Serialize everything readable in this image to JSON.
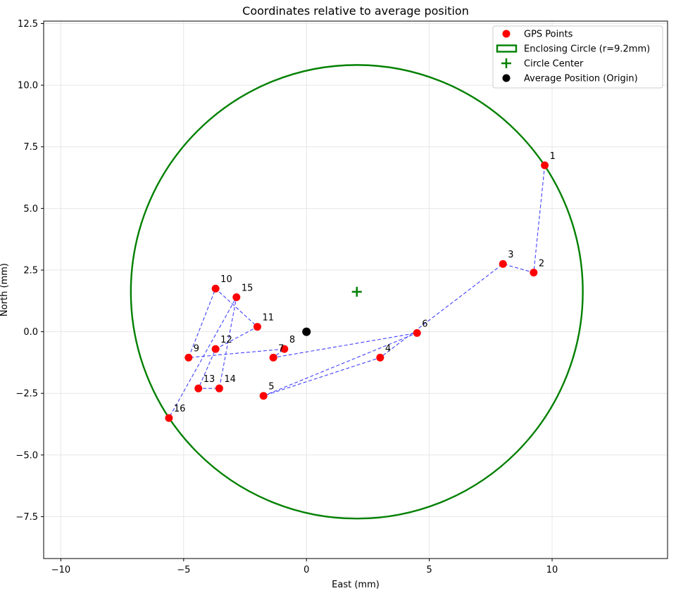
{
  "chart_data": {
    "type": "scatter",
    "title": "Coordinates relative to average position",
    "xlabel": "East (mm)",
    "ylabel": "North (mm)",
    "xlim": [
      -10.7,
      14.7
    ],
    "ylim": [
      -9.2,
      12.6
    ],
    "xticks": [
      -10,
      -5,
      0,
      5,
      10
    ],
    "yticks": [
      -7.5,
      -5.0,
      -2.5,
      0.0,
      2.5,
      5.0,
      7.5,
      10.0,
      12.5
    ],
    "xtick_labels": [
      "−10",
      "−5",
      "0",
      "5",
      "10"
    ],
    "ytick_labels": [
      "−7.5",
      "−5.0",
      "−2.5",
      "0.0",
      "2.5",
      "5.0",
      "7.5",
      "10.0",
      "12.5"
    ],
    "grid": true,
    "legend_placement": "top-right",
    "legend": [
      {
        "label": "GPS Points",
        "marker": "dot",
        "color": "#ff0000"
      },
      {
        "label": "Enclosing Circle (r=9.2mm)",
        "marker": "rect",
        "color": "#008000"
      },
      {
        "label": "Circle Center",
        "marker": "plus",
        "color": "#008000"
      },
      {
        "label": "Average Position (Origin)",
        "marker": "dot",
        "color": "#000000"
      }
    ],
    "points": [
      {
        "label": "1",
        "x": 9.7,
        "y": 6.75
      },
      {
        "label": "2",
        "x": 9.25,
        "y": 2.4
      },
      {
        "label": "3",
        "x": 8.0,
        "y": 2.75
      },
      {
        "label": "4",
        "x": 3.0,
        "y": -1.05
      },
      {
        "label": "5",
        "x": -1.75,
        "y": -2.6
      },
      {
        "label": "6",
        "x": 4.5,
        "y": -0.05
      },
      {
        "label": "7",
        "x": -1.35,
        "y": -1.05
      },
      {
        "label": "8",
        "x": -0.9,
        "y": -0.7
      },
      {
        "label": "9",
        "x": -4.8,
        "y": -1.05
      },
      {
        "label": "10",
        "x": -3.7,
        "y": 1.75
      },
      {
        "label": "11",
        "x": -2.0,
        "y": 0.2
      },
      {
        "label": "12",
        "x": -3.7,
        "y": -0.7
      },
      {
        "label": "13",
        "x": -4.4,
        "y": -2.3
      },
      {
        "label": "14",
        "x": -3.55,
        "y": -2.3
      },
      {
        "label": "15",
        "x": -2.85,
        "y": 1.4
      },
      {
        "label": "16",
        "x": -5.6,
        "y": -3.5
      }
    ],
    "path_order": [
      "1",
      "2",
      "3",
      "4",
      "5",
      "6",
      "7",
      "8",
      "9",
      "10",
      "11",
      "12",
      "13",
      "14",
      "15",
      "16"
    ],
    "circle": {
      "center_x": 2.05,
      "center_y": 1.62,
      "radius": 9.2
    },
    "origin": {
      "x": 0.0,
      "y": 0.0
    },
    "colors": {
      "points": "#ff0000",
      "circle": "#008000",
      "path": "#0000ff",
      "origin": "#000000",
      "grid": "#e6e6e6"
    }
  }
}
